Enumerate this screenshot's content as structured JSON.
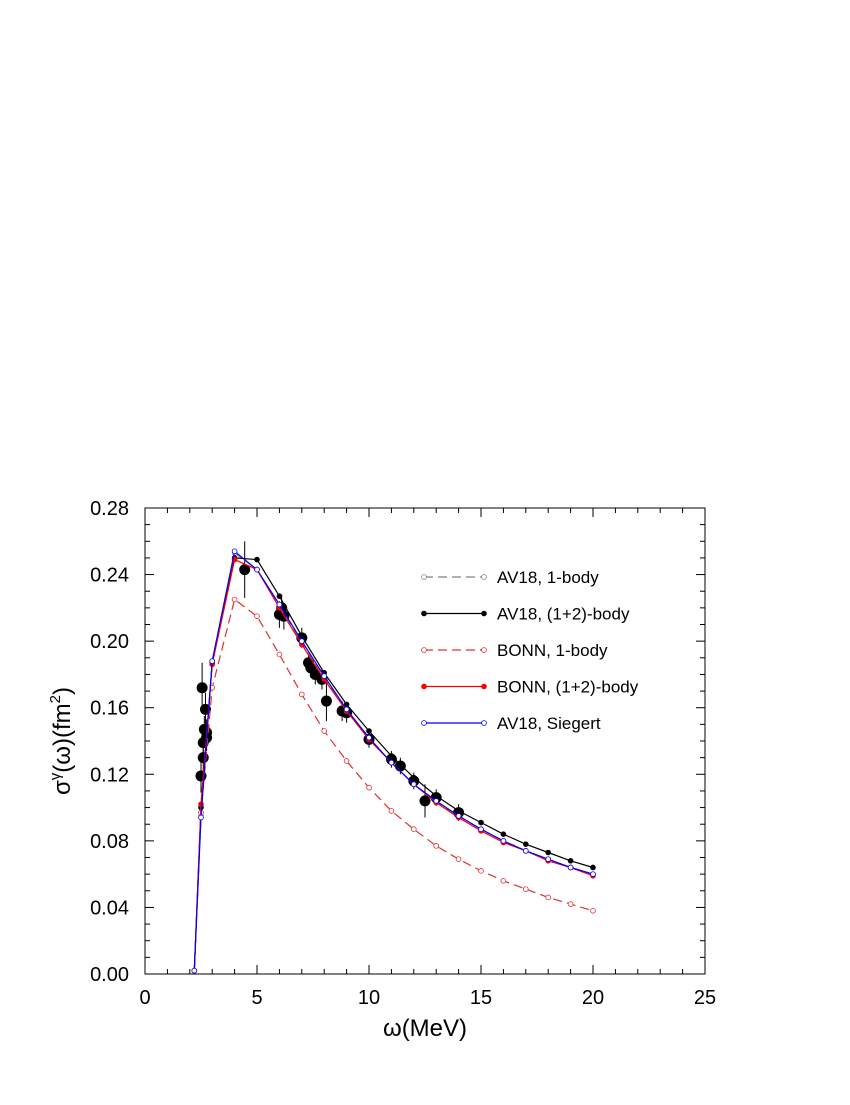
{
  "chart_data": {
    "type": "line",
    "xlabel": "ω(MeV)",
    "ylabel_parts": [
      "σ",
      "γ",
      "(ω)(fm",
      "2",
      ")"
    ],
    "xlim": [
      0,
      25
    ],
    "xticks": [
      0,
      5,
      10,
      15,
      20,
      25
    ],
    "ylim": [
      0,
      0.28
    ],
    "yticks": [
      {
        "value": 0,
        "label": "0.00"
      },
      0.04,
      0.08,
      0.12,
      0.16,
      {
        "value": 0.2,
        "label": "0.20"
      },
      0.24,
      0.28
    ],
    "x": [
      2.2,
      2.5,
      3,
      4,
      5,
      6,
      7,
      8,
      9,
      10,
      11,
      12,
      13,
      14,
      15,
      16,
      17,
      18,
      19,
      20
    ],
    "series": [
      {
        "name": "AV18, 1-body",
        "color": "#808080",
        "dashed": true,
        "marker": "open",
        "values": [
          0.002,
          0.095,
          0.188,
          0.253,
          0.243,
          0.221,
          0.199,
          0.178,
          0.158,
          0.141,
          0.127,
          0.114,
          0.103,
          0.095,
          0.087,
          0.08,
          0.074,
          0.069,
          0.064,
          0.06
        ]
      },
      {
        "name": "AV18, (1+2)-body",
        "color": "#000000",
        "dashed": false,
        "marker": "filled",
        "values": [
          0.002,
          0.1,
          0.187,
          0.25,
          0.249,
          0.227,
          0.203,
          0.181,
          0.162,
          0.146,
          0.131,
          0.118,
          0.107,
          0.098,
          0.091,
          0.084,
          0.078,
          0.073,
          0.068,
          0.064
        ]
      },
      {
        "name": "BONN, 1-body",
        "color": "#e03030",
        "dashed": true,
        "marker": "open",
        "values": [
          0.002,
          0.097,
          0.172,
          0.225,
          0.215,
          0.192,
          0.168,
          0.146,
          0.128,
          0.112,
          0.098,
          0.087,
          0.077,
          0.069,
          0.062,
          0.056,
          0.051,
          0.046,
          0.042,
          0.038
        ]
      },
      {
        "name": "BONN, (1+2)-body",
        "color": "#ff0000",
        "dashed": false,
        "marker": "filled",
        "values": [
          0.002,
          0.102,
          0.186,
          0.249,
          0.243,
          0.22,
          0.198,
          0.177,
          0.158,
          0.141,
          0.127,
          0.114,
          0.103,
          0.094,
          0.086,
          0.079,
          0.074,
          0.068,
          0.064,
          0.059
        ]
      },
      {
        "name": "AV18, Siegert",
        "color": "#0000ff",
        "dashed": false,
        "marker": "open",
        "values": [
          0.002,
          0.094,
          0.188,
          0.254,
          0.243,
          0.222,
          0.2,
          0.179,
          0.159,
          0.142,
          0.127,
          0.114,
          0.104,
          0.095,
          0.087,
          0.08,
          0.074,
          0.069,
          0.064,
          0.06
        ]
      }
    ],
    "experiment": {
      "color": "#000000",
      "x": [
        2.5,
        2.55,
        2.6,
        2.6,
        2.65,
        2.7,
        2.75,
        2.75,
        4.45,
        6.0,
        6.1,
        6.2,
        7.0,
        7.3,
        7.4,
        7.6,
        7.9,
        8.1,
        8.8,
        9.0,
        10.0,
        11.0,
        11.4,
        12.0,
        12.5,
        13.0,
        14.0
      ],
      "values": [
        0.119,
        0.172,
        0.139,
        0.13,
        0.147,
        0.159,
        0.145,
        0.142,
        0.243,
        0.216,
        0.22,
        0.215,
        0.202,
        0.187,
        0.184,
        0.18,
        0.177,
        0.164,
        0.158,
        0.157,
        0.141,
        0.129,
        0.125,
        0.116,
        0.104,
        0.106,
        0.097
      ],
      "errors": [
        0.01,
        0.015,
        0.008,
        0.008,
        0.008,
        0.01,
        0.008,
        0.008,
        0.017,
        0.008,
        0.008,
        0.008,
        0.006,
        0.006,
        0.006,
        0.006,
        0.006,
        0.012,
        0.006,
        0.006,
        0.005,
        0.005,
        0.005,
        0.005,
        0.01,
        0.005,
        0.005
      ]
    }
  }
}
